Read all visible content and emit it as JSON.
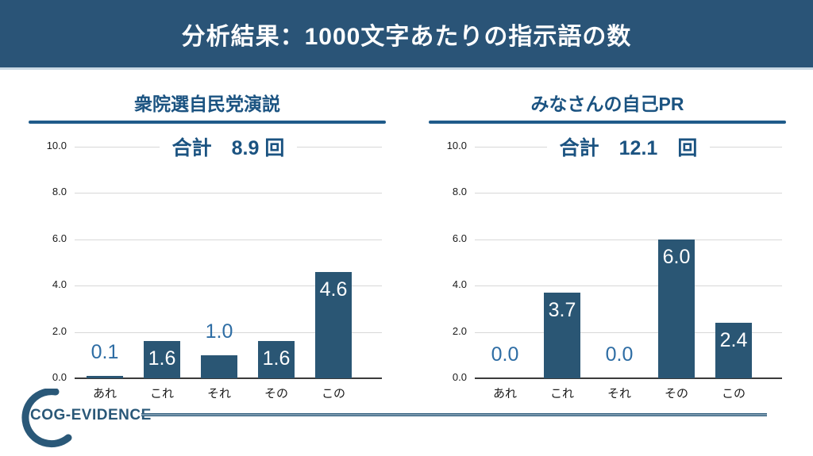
{
  "header": {
    "title": "分析結果：1000文字あたりの指示語の数"
  },
  "footer": {
    "logo_text": "COG-EVIDENCE"
  },
  "colors": {
    "header_bg": "#2A5477",
    "accent_rule": "#1F5B8A",
    "bar": "#2A5674",
    "outside_label": "#2E6DA4",
    "total_text": "#1B5381",
    "grid": "#D8D8D8",
    "axis": "#3B3B3B"
  },
  "chart_data": [
    {
      "type": "bar",
      "title": "衆院選自民党演説",
      "total_label": "合計　8.9 回",
      "categories": [
        "あれ",
        "これ",
        "それ",
        "その",
        "この"
      ],
      "values": [
        0.1,
        1.6,
        1.0,
        1.6,
        4.6
      ],
      "label_placement": [
        "outside",
        "inside",
        "outside",
        "inside",
        "inside"
      ],
      "ylim": [
        0,
        10
      ],
      "yticks": [
        0.0,
        2.0,
        4.0,
        6.0,
        8.0,
        10.0
      ],
      "grid": true,
      "legend": "none"
    },
    {
      "type": "bar",
      "title": "みなさんの自己PR",
      "total_label": "合計　12.1　回",
      "categories": [
        "あれ",
        "これ",
        "それ",
        "その",
        "この"
      ],
      "values": [
        0.0,
        3.7,
        0.0,
        6.0,
        2.4
      ],
      "label_placement": [
        "outside",
        "inside",
        "outside",
        "inside",
        "inside"
      ],
      "ylim": [
        0,
        10
      ],
      "yticks": [
        0.0,
        2.0,
        4.0,
        6.0,
        8.0,
        10.0
      ],
      "grid": true,
      "legend": "none"
    }
  ]
}
